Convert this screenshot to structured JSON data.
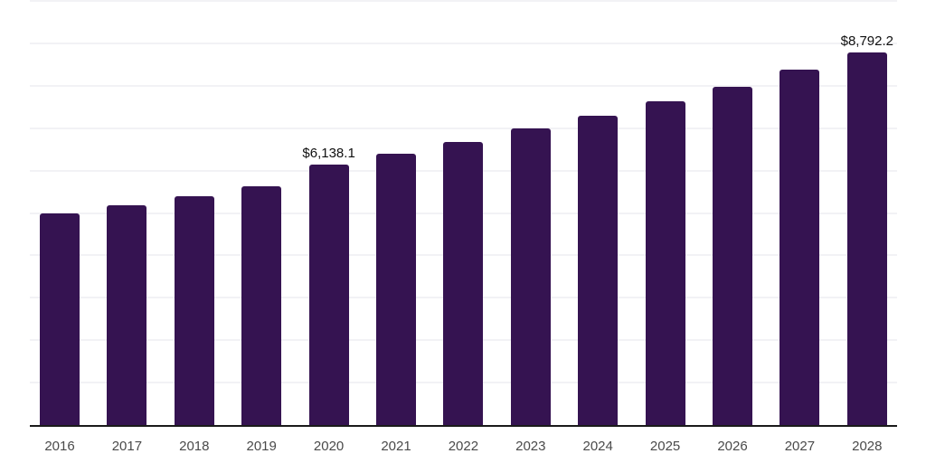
{
  "chart_data": {
    "type": "bar",
    "categories": [
      "2016",
      "2017",
      "2018",
      "2019",
      "2020",
      "2021",
      "2022",
      "2023",
      "2024",
      "2025",
      "2026",
      "2027",
      "2028"
    ],
    "values": [
      4990,
      5190,
      5400,
      5630,
      6138.1,
      6400,
      6680,
      6990,
      7300,
      7630,
      7980,
      8370,
      8792.2
    ],
    "value_labels": [
      "",
      "",
      "",
      "",
      "$6,138.1",
      "",
      "",
      "",
      "",
      "",
      "",
      "",
      "$8,792.2"
    ],
    "title": "",
    "xlabel": "",
    "ylabel": "",
    "ylim": [
      0,
      10000
    ],
    "gridline_step": 1000,
    "grid": true,
    "y_tick_labels_visible": false,
    "legend": "none",
    "colors": {
      "bar": "#351351",
      "axis_line": "#1a1a1a",
      "gridline": "#f2f2f5",
      "value_label": "#101010",
      "tick_label": "#4a4a4a",
      "background": "#ffffff"
    }
  }
}
